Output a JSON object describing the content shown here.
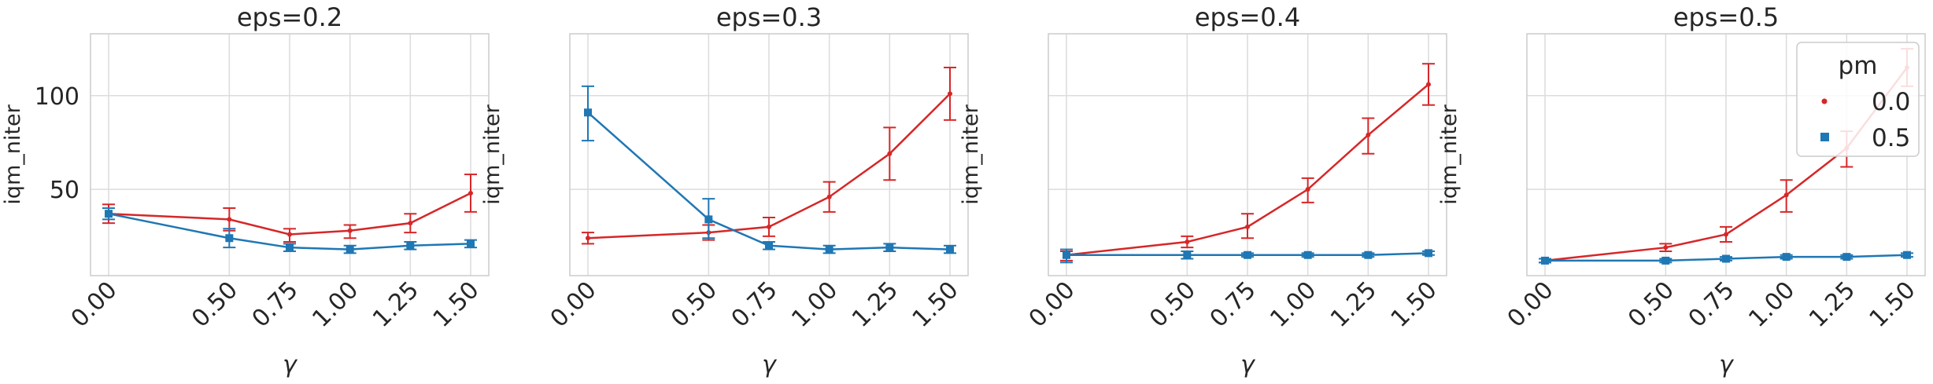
{
  "chart_data": [
    {
      "type": "line",
      "title": "eps=0.2",
      "xlabel": "γ",
      "ylabel": "iqm_niter",
      "x": [
        0.0,
        0.5,
        0.75,
        1.0,
        1.25,
        1.5
      ],
      "x_tick_labels": [
        "0.00",
        "0.50",
        "0.75",
        "1.00",
        "1.25",
        "1.50"
      ],
      "y_ticks": [
        50,
        100
      ],
      "y_tick_labels": [
        "50",
        "100"
      ],
      "ylim": [
        4,
        133
      ],
      "grid": true,
      "series": [
        {
          "name": "0.0",
          "color": "#d62728",
          "marker": "dot",
          "values": [
            37,
            34,
            26,
            28,
            32,
            48
          ],
          "err_low": [
            32,
            28,
            22,
            24,
            27,
            38
          ],
          "err_high": [
            42,
            40,
            29,
            31,
            37,
            58
          ]
        },
        {
          "name": "0.5",
          "color": "#1f77b4",
          "marker": "square",
          "values": [
            37,
            24,
            19,
            18,
            20,
            21
          ],
          "err_low": [
            34,
            19,
            17,
            16,
            18,
            19
          ],
          "err_high": [
            40,
            29,
            21,
            20,
            22,
            23
          ]
        }
      ]
    },
    {
      "type": "line",
      "title": "eps=0.3",
      "xlabel": "γ",
      "ylabel": "iqm_niter",
      "x": [
        0.0,
        0.5,
        0.75,
        1.0,
        1.25,
        1.5
      ],
      "x_tick_labels": [
        "0.00",
        "0.50",
        "0.75",
        "1.00",
        "1.25",
        "1.50"
      ],
      "y_ticks": [
        50,
        100
      ],
      "y_tick_labels": [
        "",
        ""
      ],
      "ylim": [
        4,
        133
      ],
      "grid": true,
      "series": [
        {
          "name": "0.0",
          "color": "#d62728",
          "marker": "dot",
          "values": [
            24,
            27,
            30,
            46,
            69,
            101
          ],
          "err_low": [
            21,
            23,
            25,
            38,
            55,
            87
          ],
          "err_high": [
            27,
            31,
            35,
            54,
            83,
            115
          ]
        },
        {
          "name": "0.5",
          "color": "#1f77b4",
          "marker": "square",
          "values": [
            91,
            34,
            20,
            18,
            19,
            18
          ],
          "err_low": [
            76,
            24,
            18,
            16,
            17,
            16
          ],
          "err_high": [
            105,
            45,
            22,
            20,
            21,
            20
          ]
        }
      ]
    },
    {
      "type": "line",
      "title": "eps=0.4",
      "xlabel": "γ",
      "ylabel": "iqm_niter",
      "x": [
        0.0,
        0.5,
        0.75,
        1.0,
        1.25,
        1.5
      ],
      "x_tick_labels": [
        "0.00",
        "0.50",
        "0.75",
        "1.00",
        "1.25",
        "1.50"
      ],
      "y_ticks": [
        50,
        100
      ],
      "y_tick_labels": [
        "",
        ""
      ],
      "ylim": [
        4,
        133
      ],
      "grid": true,
      "series": [
        {
          "name": "0.0",
          "color": "#d62728",
          "marker": "dot",
          "values": [
            15,
            22,
            30,
            50,
            79,
            106
          ],
          "err_low": [
            12,
            19,
            24,
            43,
            69,
            95
          ],
          "err_high": [
            17,
            25,
            37,
            56,
            88,
            117
          ]
        },
        {
          "name": "0.5",
          "color": "#1f77b4",
          "marker": "square",
          "values": [
            15,
            15,
            15,
            15,
            15,
            16
          ],
          "err_low": [
            11,
            13,
            14,
            14,
            14,
            15
          ],
          "err_high": [
            18,
            17,
            16,
            16,
            16,
            17
          ]
        }
      ]
    },
    {
      "type": "line",
      "title": "eps=0.5",
      "xlabel": "γ",
      "ylabel": "iqm_niter",
      "x": [
        0.0,
        0.5,
        0.75,
        1.0,
        1.25,
        1.5
      ],
      "x_tick_labels": [
        "0.00",
        "0.50",
        "0.75",
        "1.00",
        "1.25",
        "1.50"
      ],
      "y_ticks": [
        50,
        100
      ],
      "y_tick_labels": [
        "",
        ""
      ],
      "ylim": [
        4,
        133
      ],
      "grid": true,
      "legend": {
        "title": "pm",
        "placement": "top-right"
      },
      "series": [
        {
          "name": "0.0",
          "color": "#d62728",
          "marker": "dot",
          "values": [
            12,
            19,
            26,
            47,
            72,
            115
          ],
          "err_low": [
            11,
            17,
            22,
            38,
            62,
            105
          ],
          "err_high": [
            13,
            21,
            30,
            55,
            81,
            125
          ]
        },
        {
          "name": "0.5",
          "color": "#1f77b4",
          "marker": "square",
          "values": [
            12,
            12,
            13,
            14,
            14,
            15
          ],
          "err_low": [
            11,
            11,
            12,
            13,
            13,
            14
          ],
          "err_high": [
            13,
            13,
            14,
            15,
            15,
            16
          ]
        }
      ]
    }
  ]
}
